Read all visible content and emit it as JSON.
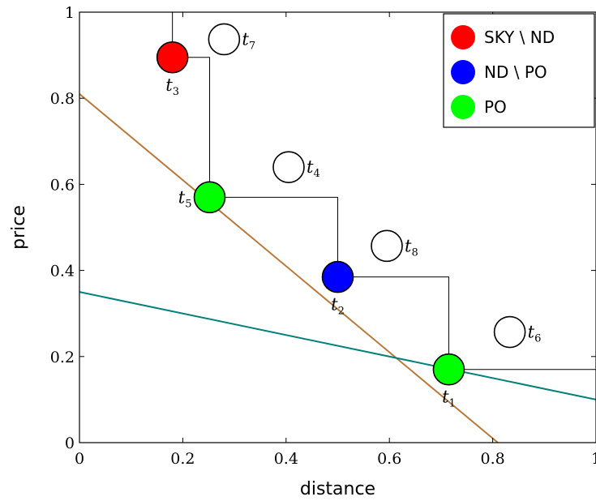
{
  "chart_data": {
    "type": "scatter",
    "title": "",
    "xlabel": "distance",
    "ylabel": "price",
    "xlim": [
      0,
      1
    ],
    "ylim": [
      0,
      1
    ],
    "x_ticks": [
      "0",
      "0.2",
      "0.4",
      "0.6",
      "0.8",
      "1"
    ],
    "y_ticks": [
      "0",
      "0.2",
      "0.4",
      "0.6",
      "0.8",
      "1"
    ],
    "grid": false,
    "legend_position": "top-right",
    "categories": [
      {
        "key": "sky_nd",
        "label": "SKY \\ ND",
        "color": "#ff0000"
      },
      {
        "key": "nd_po",
        "label": "ND \\ PO",
        "color": "#0000ff"
      },
      {
        "key": "po",
        "label": "PO",
        "color": "#00ff00"
      }
    ],
    "points": [
      {
        "id": "t1",
        "base": "t",
        "sub": "1",
        "x": 0.715,
        "y": 0.17,
        "category": "po",
        "label_pos": "below"
      },
      {
        "id": "t2",
        "base": "t",
        "sub": "2",
        "x": 0.5,
        "y": 0.385,
        "category": "nd_po",
        "label_pos": "below"
      },
      {
        "id": "t3",
        "base": "t",
        "sub": "3",
        "x": 0.18,
        "y": 0.895,
        "category": "sky_nd",
        "label_pos": "below"
      },
      {
        "id": "t4",
        "base": "t",
        "sub": "4",
        "x": 0.405,
        "y": 0.64,
        "category": "none",
        "label_pos": "right"
      },
      {
        "id": "t5",
        "base": "t",
        "sub": "5",
        "x": 0.252,
        "y": 0.57,
        "category": "po",
        "label_pos": "left"
      },
      {
        "id": "t6",
        "base": "t",
        "sub": "6",
        "x": 0.833,
        "y": 0.257,
        "category": "none",
        "label_pos": "right"
      },
      {
        "id": "t7",
        "base": "t",
        "sub": "7",
        "x": 0.28,
        "y": 0.937,
        "category": "none",
        "label_pos": "right"
      },
      {
        "id": "t8",
        "base": "t",
        "sub": "8",
        "x": 0.595,
        "y": 0.457,
        "category": "none",
        "label_pos": "right"
      }
    ],
    "skyline_staircase": [
      [
        0.18,
        1.0
      ],
      [
        0.18,
        0.895
      ],
      [
        0.252,
        0.895
      ],
      [
        0.252,
        0.57
      ],
      [
        0.5,
        0.57
      ],
      [
        0.5,
        0.385
      ],
      [
        0.715,
        0.385
      ],
      [
        0.715,
        0.17
      ],
      [
        1.0,
        0.17
      ]
    ],
    "lines": [
      {
        "id": "steep-line",
        "color": "#b8793a",
        "from": [
          0,
          0.81
        ],
        "to": [
          0.81,
          0
        ]
      },
      {
        "id": "shallow-line",
        "color": "#00807a",
        "from": [
          0,
          0.35
        ],
        "to": [
          1,
          0.1
        ]
      }
    ]
  }
}
